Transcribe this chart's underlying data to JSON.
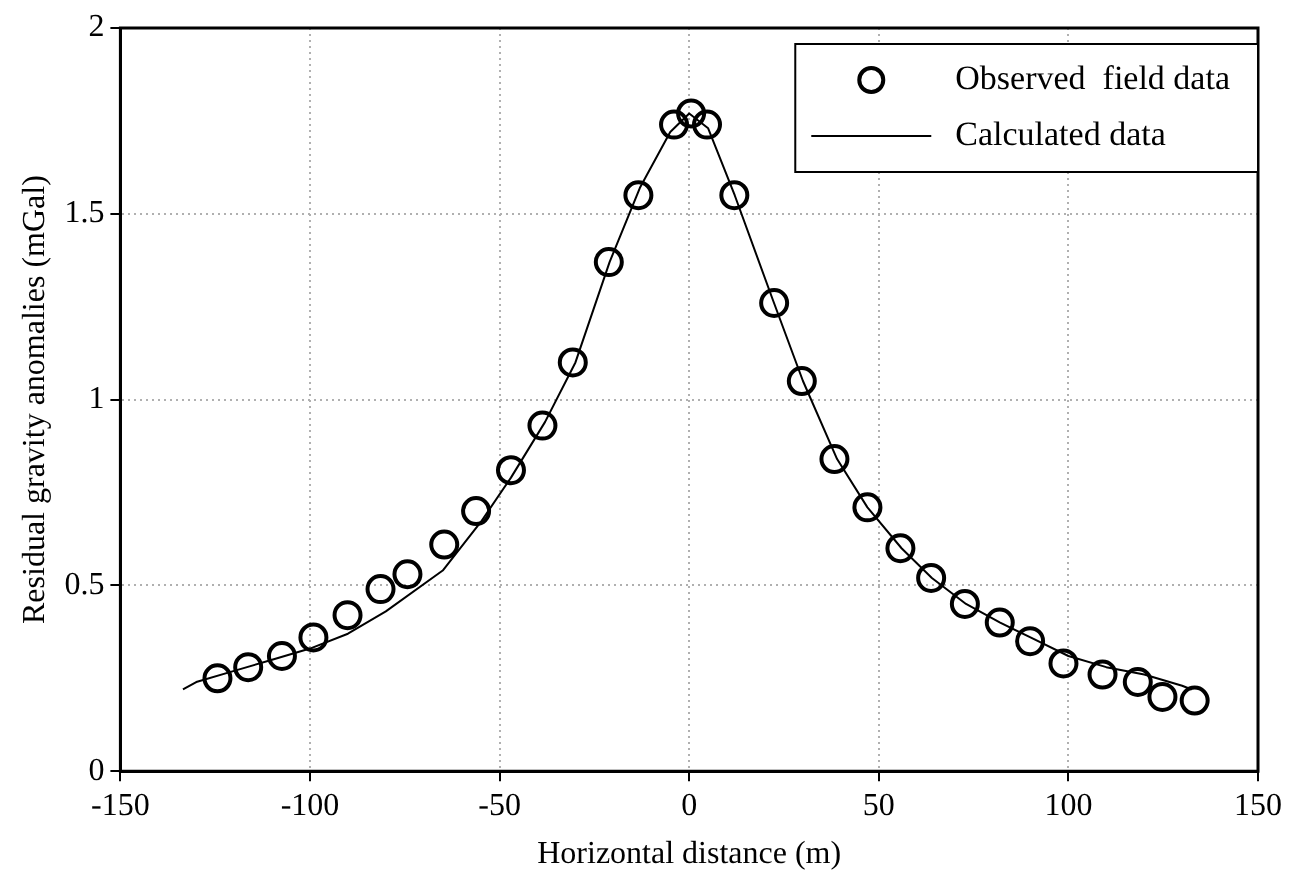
{
  "chart_data": {
    "type": "scatter",
    "xlabel": "Horizontal distance (m)",
    "ylabel": "Residual gravity anomalies (mGal)",
    "xlim": [
      -150,
      150
    ],
    "xticks": [
      -150,
      -100,
      -50,
      0,
      50,
      100,
      150
    ],
    "ylim": [
      0,
      2
    ],
    "yticks": [
      0,
      0.5,
      1,
      1.5,
      2
    ],
    "grid": true,
    "legend": "top right",
    "series": [
      {
        "name": "Observed  field data",
        "marker": "circle",
        "color": "#000000",
        "x": [
          -124.4,
          -116.3,
          -107.4,
          -99.1,
          -90.1,
          -81.4,
          -74.3,
          -64.6,
          -56.2,
          -47.0,
          -38.7,
          -30.7,
          -21.2,
          -13.4,
          -4.0,
          0.5,
          4.7,
          11.9,
          22.4,
          29.7,
          38.3,
          47.0,
          55.7,
          63.8,
          72.7,
          81.9,
          89.9,
          98.7,
          109.0,
          118.3,
          124.8,
          133.3
        ],
        "values": [
          0.25,
          0.28,
          0.31,
          0.36,
          0.42,
          0.49,
          0.53,
          0.61,
          0.7,
          0.81,
          0.93,
          1.1,
          1.37,
          1.55,
          1.74,
          1.77,
          1.74,
          1.55,
          1.26,
          1.05,
          0.84,
          0.71,
          0.6,
          0.52,
          0.45,
          0.4,
          0.35,
          0.29,
          0.26,
          0.24,
          0.2,
          0.19
        ]
      },
      {
        "name": "Calculated data",
        "type": "line",
        "marker": "none",
        "line_style": "solid",
        "color": "#000000",
        "x": [
          -133.5,
          -130,
          -120,
          -110,
          -100,
          -90,
          -80,
          -65,
          -55,
          -47,
          -38,
          -30,
          -21,
          -13,
          -5,
          0,
          5,
          12,
          22,
          30,
          39,
          47,
          56,
          64,
          73,
          82,
          90,
          100,
          110,
          120,
          130,
          132.5
        ],
        "values": [
          0.22,
          0.24,
          0.27,
          0.3,
          0.33,
          0.37,
          0.43,
          0.54,
          0.67,
          0.79,
          0.94,
          1.1,
          1.37,
          1.57,
          1.72,
          1.77,
          1.73,
          1.55,
          1.27,
          1.05,
          0.84,
          0.71,
          0.6,
          0.52,
          0.45,
          0.4,
          0.36,
          0.31,
          0.28,
          0.26,
          0.23,
          0.22
        ]
      }
    ]
  }
}
